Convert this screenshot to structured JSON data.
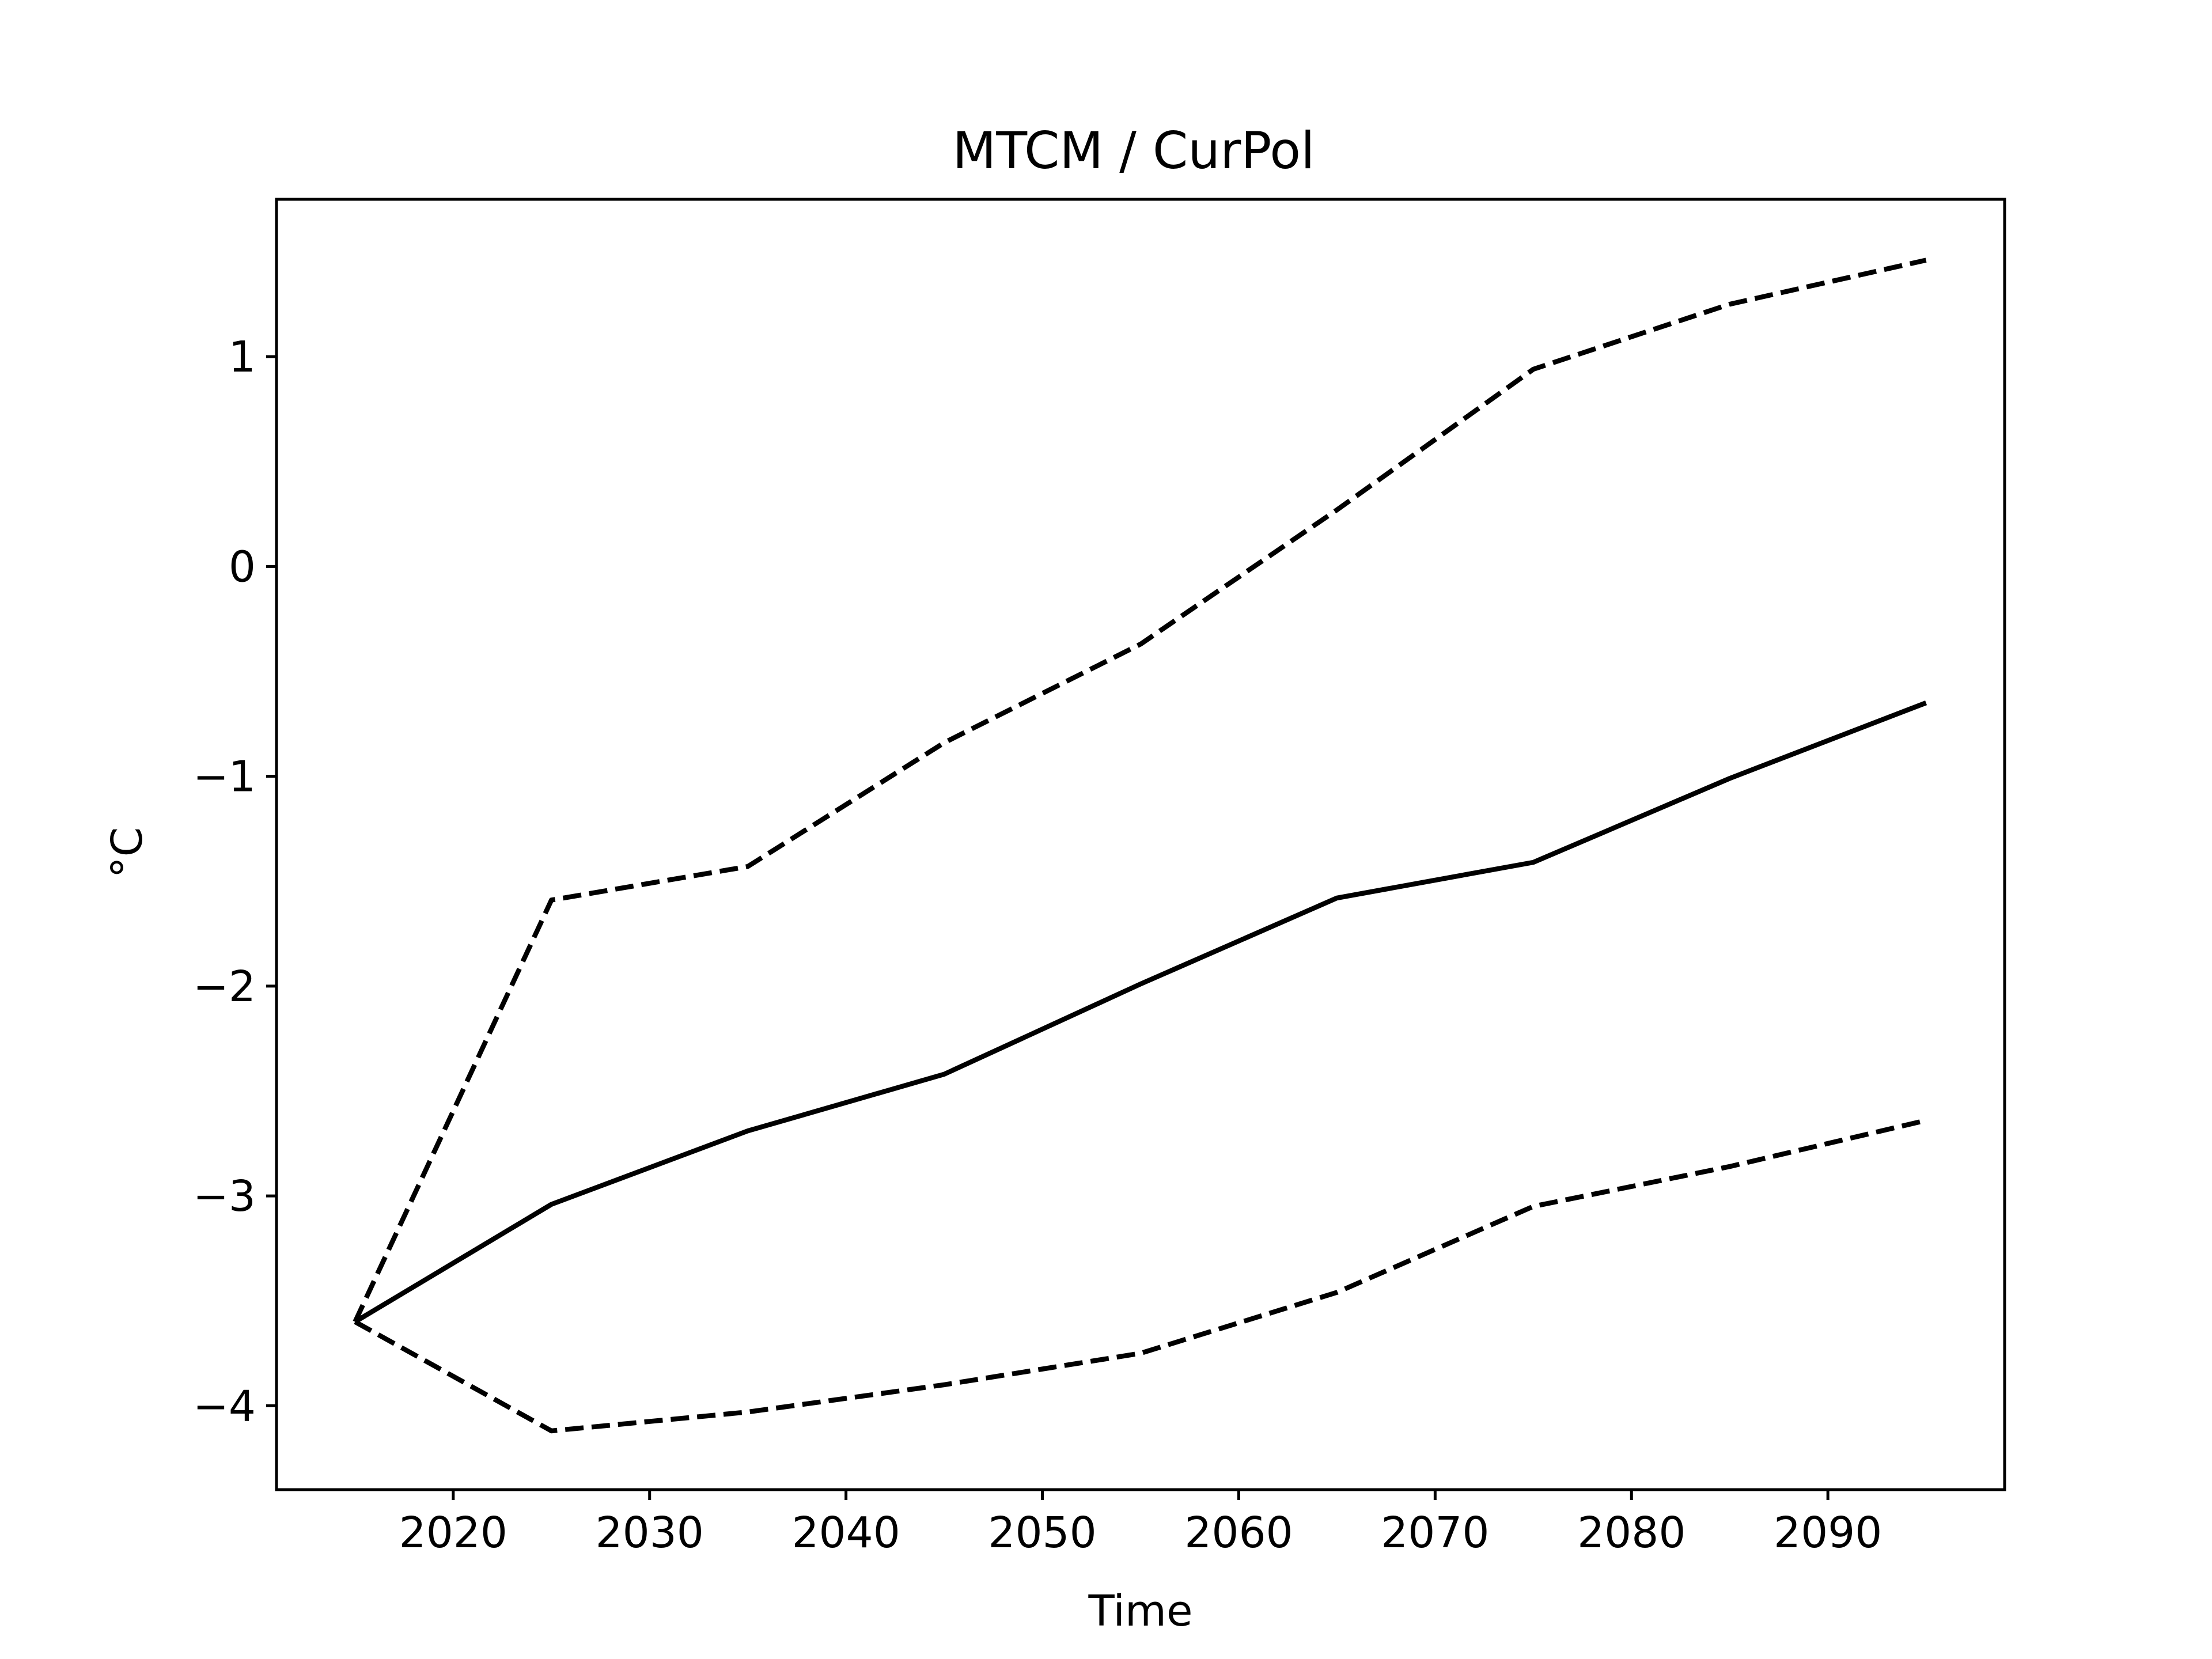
{
  "chart_data": {
    "type": "line",
    "title": "MTCM / CurPol",
    "xlabel": "Time",
    "ylabel": "°C",
    "xlim": [
      2011.0,
      2099.0
    ],
    "ylim": [
      -4.4,
      1.75
    ],
    "xticks": [
      2020,
      2030,
      2040,
      2050,
      2060,
      2070,
      2080,
      2090
    ],
    "yticks": [
      1,
      0,
      -1,
      -2,
      -3,
      -4
    ],
    "ytick_labels": [
      "1",
      "0",
      "−1",
      "−2",
      "−3",
      "−4"
    ],
    "grid": false,
    "x": [
      2015,
      2025,
      2035,
      2045,
      2055,
      2065,
      2075,
      2085,
      2095
    ],
    "series": [
      {
        "style": "solid",
        "color": "#000000",
        "values": [
          -3.6,
          -3.04,
          -2.69,
          -2.42,
          -1.99,
          -1.58,
          -1.41,
          -1.01,
          -0.65
        ]
      },
      {
        "style": "dashed",
        "color": "#000000",
        "values": [
          -3.6,
          -1.59,
          -1.43,
          -0.84,
          -0.37,
          0.27,
          0.94,
          1.25,
          1.46
        ]
      },
      {
        "style": "dashed",
        "color": "#000000",
        "values": [
          -3.6,
          -4.12,
          -4.03,
          -3.9,
          -3.75,
          -3.46,
          -3.05,
          -2.86,
          -2.64
        ]
      }
    ]
  }
}
